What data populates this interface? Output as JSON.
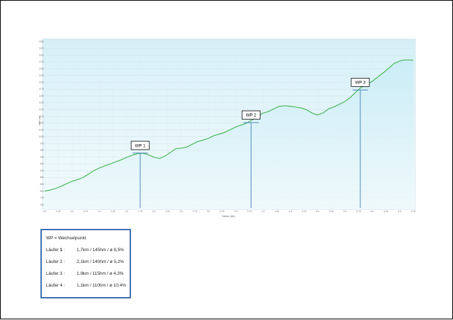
{
  "colors": {
    "line": "#3cb24a",
    "fill_top": "#c9ecf6",
    "fill_bottom": "#eef9fb",
    "waypoint_line": "#4d86bd",
    "legend_border": "#3e6db5"
  },
  "chart_data": {
    "type": "area",
    "x_label": "Distanz (km)",
    "y_label": "Höhe (m)",
    "x_ticks": [
      "0.0",
      "0.25",
      "0.5",
      "0.75",
      "1.0",
      "1.25",
      "1.5",
      "1.75",
      "2.0",
      "2.25",
      "2.5",
      "2.75",
      "3.0",
      "3.25",
      "3.5",
      "3.75",
      "4.0",
      "4.25",
      "4.5",
      "4.75",
      "5.0",
      "5.25",
      "5.5",
      "5.75",
      "6.0",
      "6.25",
      "6.5",
      "6.75"
    ],
    "y_ticks": [
      "750",
      "775",
      "800",
      "825",
      "850",
      "875",
      "900",
      "925",
      "950",
      "975",
      "1000",
      "1025",
      "1050",
      "1075",
      "1100",
      "1125",
      "1150",
      "1175",
      "1200",
      "1225",
      "1250",
      "1275",
      "1300",
      "1325",
      "1350"
    ],
    "xlim": [
      0,
      6.75
    ],
    "ylim": [
      738,
      1352
    ],
    "grid": true,
    "elevation_profile": {
      "x": [
        0.0,
        0.1,
        0.2,
        0.3,
        0.4,
        0.5,
        0.6,
        0.7,
        0.8,
        0.9,
        1.0,
        1.1,
        1.2,
        1.3,
        1.4,
        1.5,
        1.6,
        1.7,
        1.8,
        1.9,
        2.0,
        2.1,
        2.2,
        2.3,
        2.4,
        2.5,
        2.6,
        2.7,
        2.8,
        2.9,
        3.0,
        3.1,
        3.2,
        3.3,
        3.4,
        3.5,
        3.6,
        3.7,
        3.8,
        3.9,
        4.0,
        4.1,
        4.2,
        4.3,
        4.4,
        4.5,
        4.6,
        4.7,
        4.8,
        4.9,
        5.0,
        5.1,
        5.2,
        5.3,
        5.4,
        5.5,
        5.6,
        5.7,
        5.8,
        5.9,
        6.0,
        6.1,
        6.2,
        6.3,
        6.4,
        6.5,
        6.6,
        6.75
      ],
      "y": [
        800,
        804,
        810,
        818,
        827,
        836,
        842,
        850,
        862,
        875,
        885,
        893,
        900,
        908,
        915,
        924,
        932,
        938,
        939,
        934,
        925,
        920,
        928,
        942,
        956,
        958,
        962,
        972,
        982,
        988,
        994,
        1004,
        1010,
        1016,
        1026,
        1036,
        1043,
        1050,
        1062,
        1076,
        1087,
        1093,
        1103,
        1112,
        1114,
        1112,
        1109,
        1106,
        1099,
        1087,
        1080,
        1088,
        1103,
        1110,
        1120,
        1130,
        1145,
        1165,
        1182,
        1192,
        1204,
        1220,
        1235,
        1252,
        1270,
        1278,
        1283,
        1282
      ]
    }
  },
  "waypoints": [
    {
      "label": "WP 1",
      "x": 1.75,
      "y": 940
    },
    {
      "label": "WP 2",
      "x": 3.78,
      "y": 1052
    },
    {
      "label": "WP 3",
      "x": 5.78,
      "y": 1172
    }
  ],
  "legend": {
    "title": "WP = Wechselpunkt",
    "rows": [
      {
        "runner": "Läufer",
        "num": "1",
        "sep": ":",
        "stats": "1,7km / 145hm / ø 8,5%"
      },
      {
        "runner": "Läufer",
        "num": "2",
        "sep": ":",
        "stats": "2,1km / 140hm / ø 5,2%"
      },
      {
        "runner": "Läufer",
        "num": "3",
        "sep": ":",
        "stats": "1,9km / 115hm / ø 4,3%"
      },
      {
        "runner": "Läufer",
        "num": "4",
        "sep": ":",
        "stats": "1,1km / 110hm / ø 10,4%"
      }
    ]
  }
}
